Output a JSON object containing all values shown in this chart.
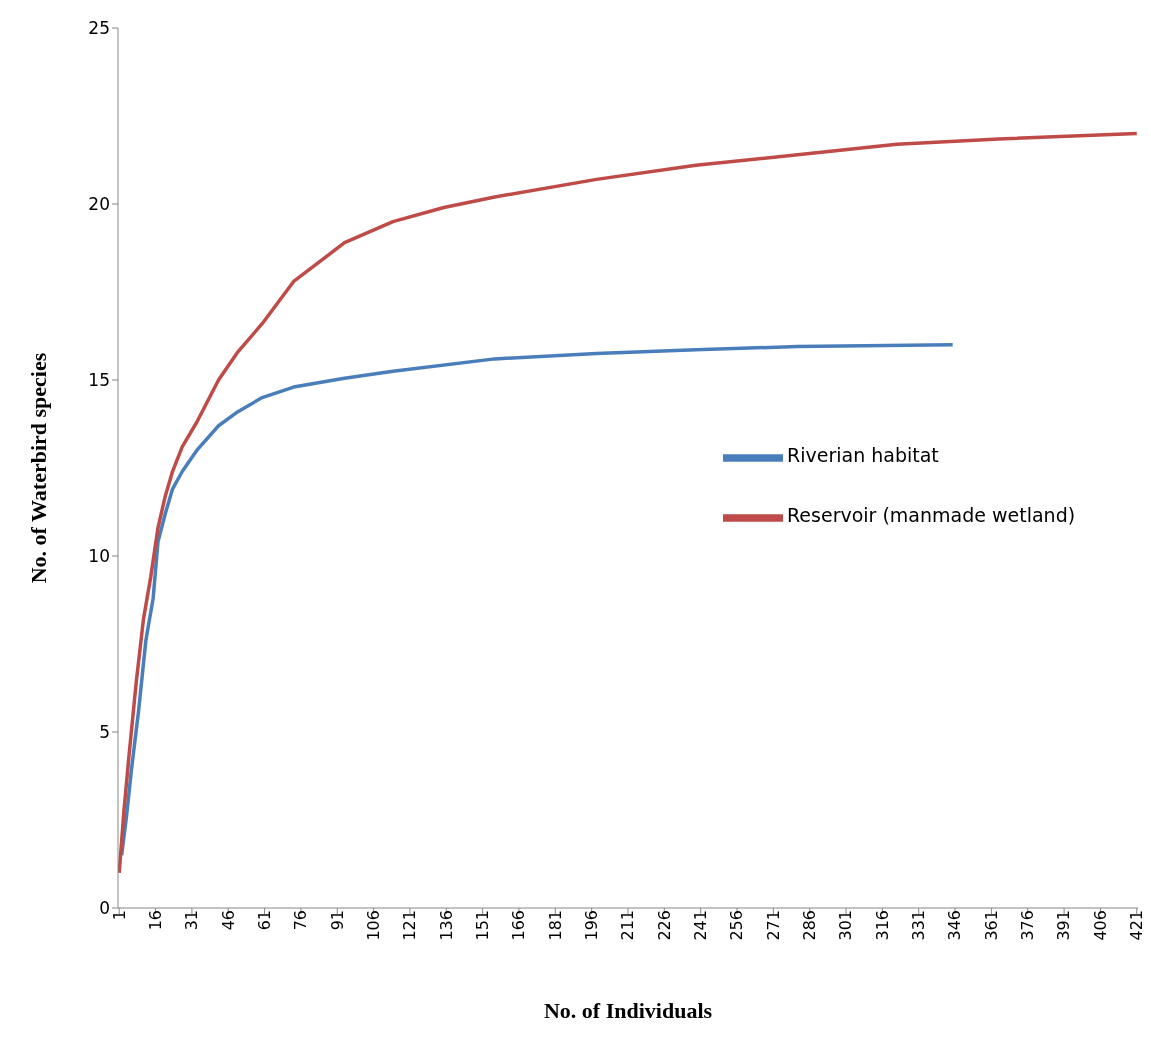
{
  "chart_data": {
    "type": "line",
    "xlabel": "No. of Individuals",
    "ylabel": "No. of Waterbird species",
    "xlim": [
      0.5,
      421.5
    ],
    "xticks": [
      1,
      16,
      31,
      46,
      61,
      76,
      91,
      106,
      121,
      136,
      151,
      166,
      181,
      196,
      211,
      226,
      241,
      256,
      271,
      286,
      301,
      316,
      331,
      346,
      361,
      376,
      391,
      406,
      421
    ],
    "ylim": [
      0,
      25
    ],
    "yticks": [
      0,
      5,
      10,
      15,
      20,
      25
    ],
    "grid": false,
    "legend": "right",
    "marker": "none",
    "line_style": "solid",
    "series": [
      {
        "name": "Riverian habitat",
        "color": "#4a7ebb",
        "x": [
          2,
          4,
          6,
          9,
          12,
          15,
          17,
          20,
          23,
          27,
          33,
          42,
          50,
          60,
          73,
          94,
          114,
          156,
          198,
          239,
          281,
          345
        ],
        "values": [
          1.5,
          2.6,
          3.9,
          5.6,
          7.6,
          8.8,
          10.4,
          11.2,
          11.9,
          12.4,
          13,
          13.7,
          14.1,
          14.5,
          14.8,
          15.05,
          15.25,
          15.6,
          15.75,
          15.86,
          15.95,
          16
        ]
      },
      {
        "name": "Reservoir (manmade wetland)",
        "color": "#be4b48",
        "x": [
          1,
          3,
          5,
          8,
          11,
          14,
          17,
          20,
          23,
          27,
          33,
          42,
          50,
          60,
          73,
          94,
          114,
          135,
          156,
          198,
          239,
          281,
          322,
          364,
          421
        ],
        "values": [
          1,
          2.8,
          4.3,
          6.4,
          8.2,
          9.4,
          10.8,
          11.7,
          12.4,
          13.1,
          13.8,
          15,
          15.8,
          16.6,
          17.8,
          18.9,
          19.5,
          19.9,
          20.2,
          20.7,
          21.1,
          21.4,
          21.7,
          21.85,
          22
        ]
      }
    ]
  }
}
